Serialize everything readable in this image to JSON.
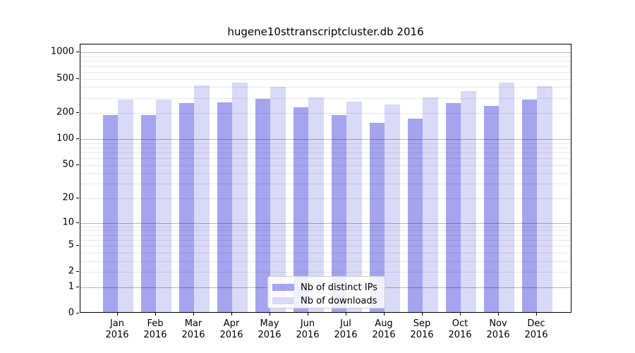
{
  "title": "hugene10sttranscriptcluster.db 2016",
  "colors": {
    "distinct_ips": "#a4a4ef",
    "downloads": "#d9d9f8",
    "axis": "#000000",
    "grid_major": "rgba(0,0,0,0.28)",
    "grid_minor": "rgba(0,0,0,0.09)",
    "legend_border": "#cccccc",
    "background": "#ffffff"
  },
  "legend": {
    "items": [
      {
        "label": "Nb of distinct IPs",
        "color_key": "distinct_ips"
      },
      {
        "label": "Nb of downloads",
        "color_key": "downloads"
      }
    ]
  },
  "chart_data": {
    "type": "bar",
    "title": "hugene10sttranscriptcluster.db 2016",
    "categories": [
      "Jan",
      "Feb",
      "Mar",
      "Apr",
      "May",
      "Jun",
      "Jul",
      "Aug",
      "Sep",
      "Oct",
      "Nov",
      "Dec"
    ],
    "year": "2016",
    "series": [
      {
        "name": "Nb of distinct IPs",
        "color_key": "distinct_ips",
        "values": [
          185,
          185,
          250,
          258,
          283,
          226,
          185,
          148,
          166,
          252,
          236,
          275
        ]
      },
      {
        "name": "Nb of downloads",
        "color_key": "downloads",
        "values": [
          275,
          275,
          400,
          434,
          387,
          291,
          262,
          243,
          292,
          348,
          434,
          396
        ]
      }
    ],
    "yscale": "log1p",
    "yticks": [
      0,
      1,
      2,
      5,
      10,
      20,
      50,
      100,
      200,
      500,
      1000
    ],
    "ylim": [
      0,
      1240
    ],
    "grid": true,
    "legend_position": "lower center"
  }
}
